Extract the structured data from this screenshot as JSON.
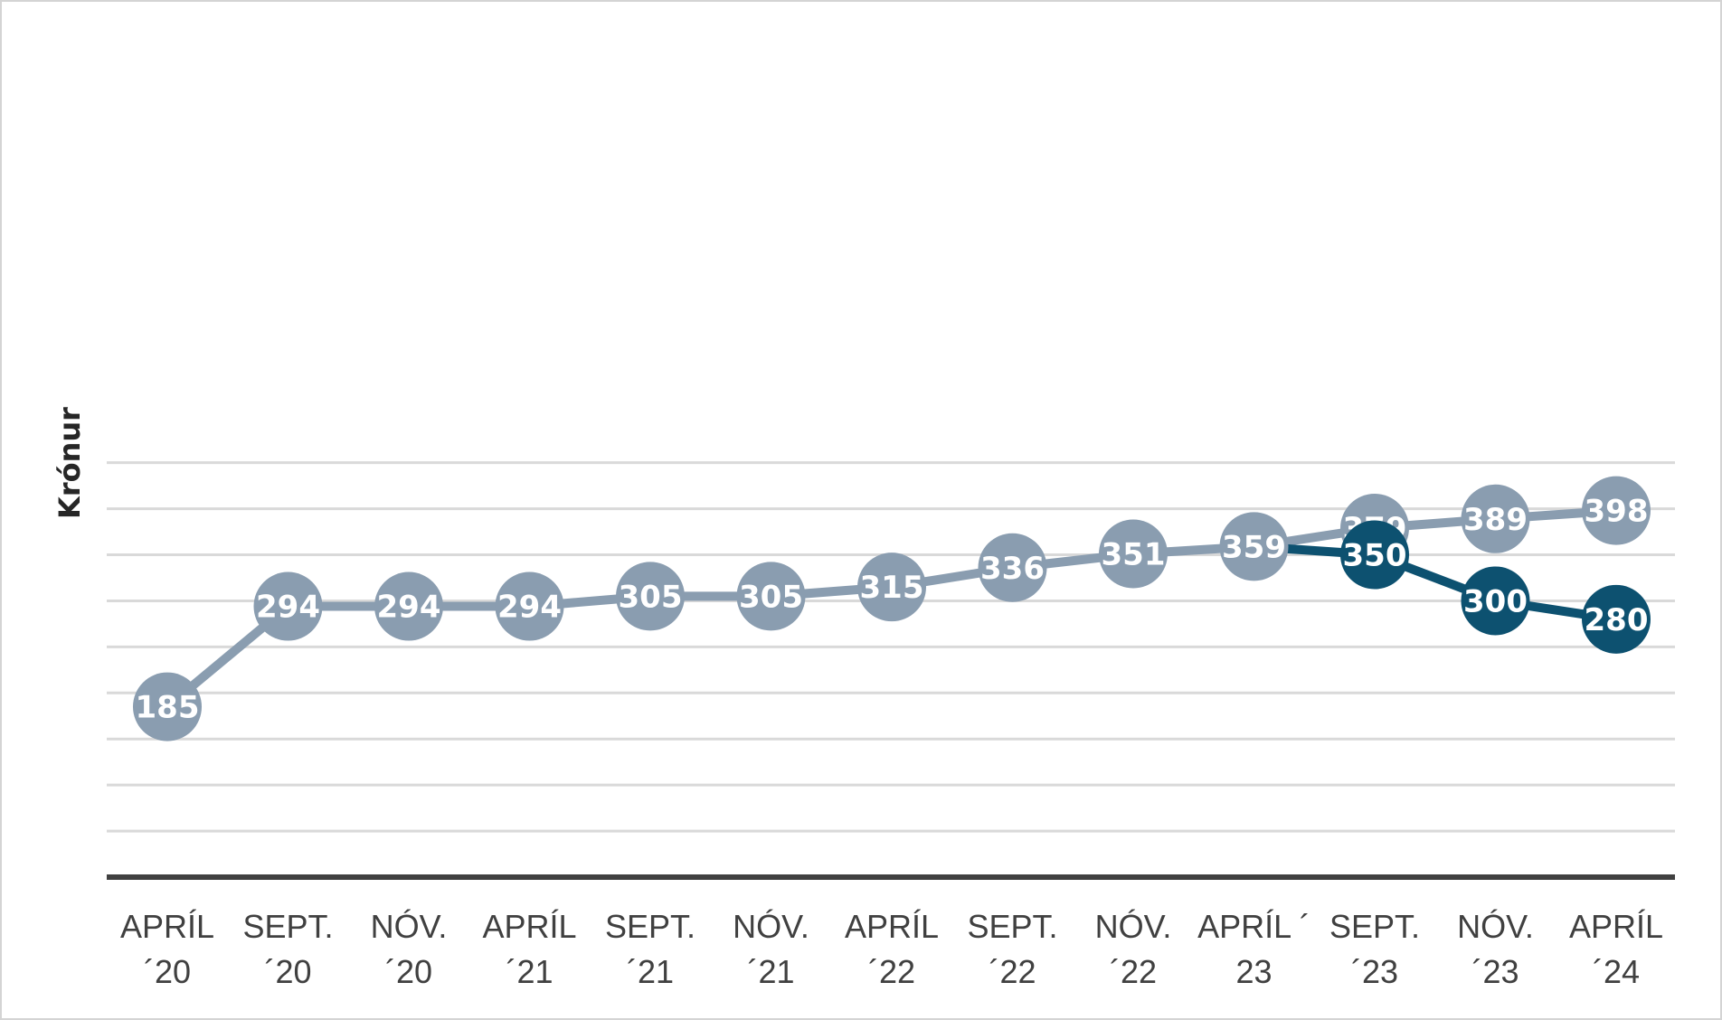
{
  "chart_data": {
    "type": "line",
    "title": "",
    "xlabel": "",
    "ylabel": "Krónur",
    "ylim": [
      0,
      450
    ],
    "grid": true,
    "legend": "none",
    "categories": [
      [
        "APRÍL",
        "´20"
      ],
      [
        "SEPT.",
        "´20"
      ],
      [
        "NÓV.",
        "´20"
      ],
      [
        "APRÍL",
        "´21"
      ],
      [
        "SEPT.",
        "´21"
      ],
      [
        "NÓV.",
        "´21"
      ],
      [
        "APRÍL",
        "´22"
      ],
      [
        "SEPT.",
        "´22"
      ],
      [
        "NÓV.",
        "´22"
      ],
      [
        "APRÍL ´",
        "23"
      ],
      [
        "SEPT.",
        "´23"
      ],
      [
        "NÓV.",
        "´23"
      ],
      [
        "APRÍL",
        "´24"
      ]
    ],
    "series": [
      {
        "color": "#8a9db0",
        "values": [
          185,
          294,
          294,
          294,
          305,
          305,
          315,
          336,
          351,
          359,
          379,
          389,
          398
        ]
      },
      {
        "color": "#0d5170",
        "values": [
          null,
          null,
          null,
          null,
          null,
          null,
          null,
          null,
          null,
          359,
          350,
          300,
          280
        ]
      }
    ]
  }
}
